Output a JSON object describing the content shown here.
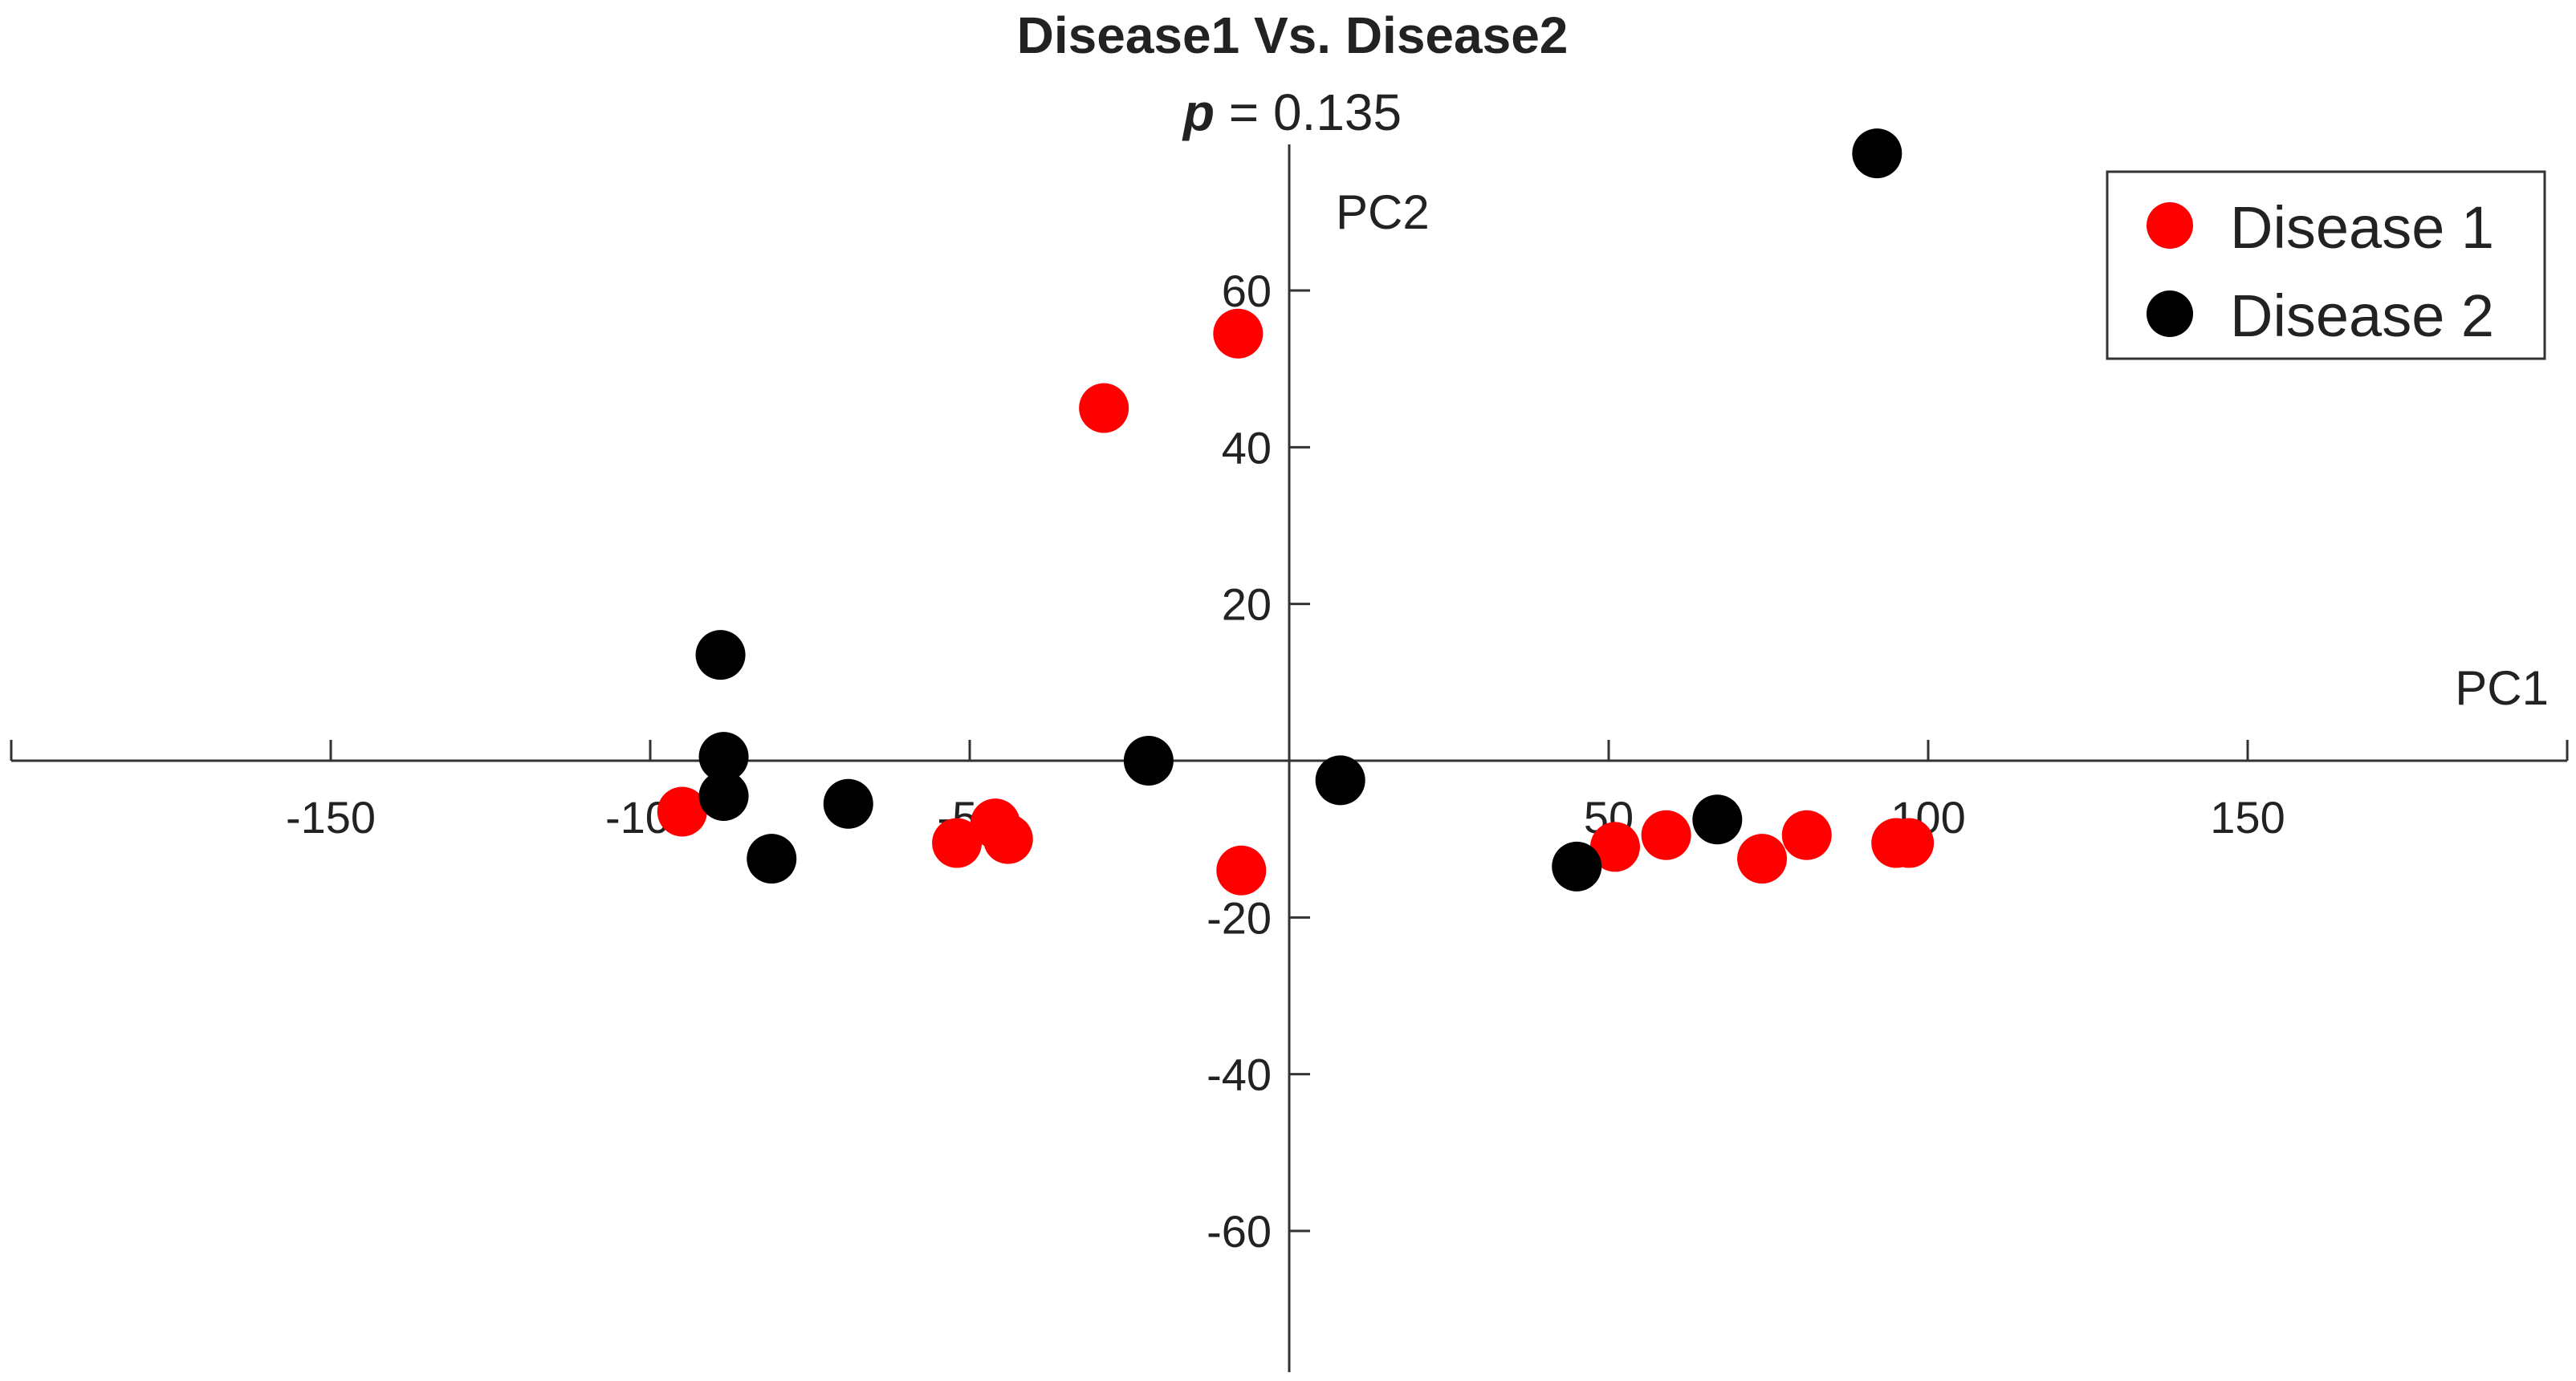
{
  "chart_data": {
    "type": "scatter",
    "title": "Disease1 Vs. Disease2",
    "subtitle": {
      "stat_symbol": "p",
      "stat_text": " = 0.135"
    },
    "xlabel": "PC1",
    "ylabel": "PC2",
    "xlim": [
      -200,
      200
    ],
    "ylim": [
      -78,
      80
    ],
    "x_ticks": [
      {
        "value": -150,
        "label": "-150"
      },
      {
        "value": -100,
        "label": "-100"
      },
      {
        "value": -50,
        "label": "-50"
      },
      {
        "value": 50,
        "label": "50"
      },
      {
        "value": 100,
        "label": "100"
      },
      {
        "value": 150,
        "label": "150"
      }
    ],
    "y_ticks": [
      {
        "value": 60,
        "label": "60"
      },
      {
        "value": 40,
        "label": "40"
      },
      {
        "value": 20,
        "label": "20"
      },
      {
        "value": -20,
        "label": "-20"
      },
      {
        "value": -40,
        "label": "-40"
      },
      {
        "value": -60,
        "label": "-60"
      }
    ],
    "grid": false,
    "legend_position": "top-right",
    "series": [
      {
        "name": "Disease 1",
        "color": "#ff0000",
        "points": [
          {
            "x": -95,
            "y": -6.5
          },
          {
            "x": -52,
            "y": -10.5
          },
          {
            "x": -46,
            "y": -8
          },
          {
            "x": -44,
            "y": -10
          },
          {
            "x": -29,
            "y": 45
          },
          {
            "x": -8,
            "y": 54.5
          },
          {
            "x": -7.5,
            "y": -14
          },
          {
            "x": 51,
            "y": -11
          },
          {
            "x": 59,
            "y": -9.5
          },
          {
            "x": 74,
            "y": -12.5
          },
          {
            "x": 81,
            "y": -9.5
          },
          {
            "x": 95,
            "y": -10.5
          },
          {
            "x": 97,
            "y": -10.5
          }
        ]
      },
      {
        "name": "Disease 2",
        "color": "#000000",
        "points": [
          {
            "x": -89,
            "y": 13.5
          },
          {
            "x": -88.5,
            "y": 0.5
          },
          {
            "x": -88.5,
            "y": -4.5
          },
          {
            "x": -81,
            "y": -12.5
          },
          {
            "x": -69,
            "y": -5.5
          },
          {
            "x": -22,
            "y": 0
          },
          {
            "x": 8,
            "y": -2.5
          },
          {
            "x": 45,
            "y": -13.5
          },
          {
            "x": 67,
            "y": -7.5
          },
          {
            "x": 92,
            "y": 77.5
          }
        ]
      }
    ]
  }
}
